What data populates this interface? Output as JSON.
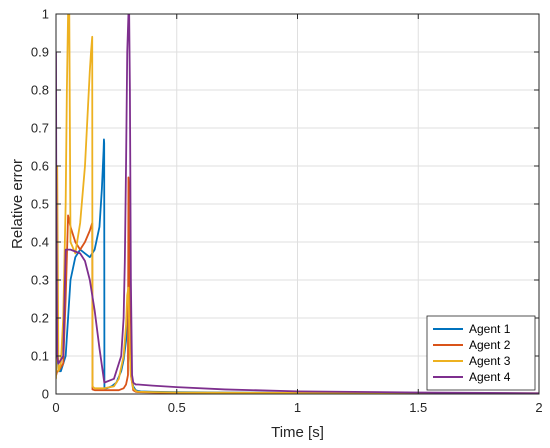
{
  "chart_data": {
    "type": "line",
    "title": "",
    "xlabel": "Time [s]",
    "ylabel": "Relative error",
    "xlim": [
      0,
      2
    ],
    "ylim": [
      0,
      1
    ],
    "xticks": [
      0,
      0.5,
      1,
      1.5,
      2
    ],
    "xtick_labels": [
      "0",
      "0.5",
      "1",
      "1.5",
      "2"
    ],
    "yticks": [
      0,
      0.1,
      0.2,
      0.3,
      0.4,
      0.5,
      0.6,
      0.7,
      0.8,
      0.9,
      1
    ],
    "ytick_labels": [
      "0",
      "0.1",
      "0.2",
      "0.3",
      "0.4",
      "0.5",
      "0.6",
      "0.7",
      "0.8",
      "0.9",
      "1"
    ],
    "grid": true,
    "legend_position": "bottom-right",
    "series": [
      {
        "name": "Agent 1",
        "color": "#0072BD",
        "x": [
          0,
          0.001,
          0.005,
          0.01,
          0.02,
          0.04,
          0.05,
          0.06,
          0.08,
          0.1,
          0.12,
          0.14,
          0.16,
          0.18,
          0.19,
          0.197,
          0.1985,
          0.1995,
          0.2005,
          0.21,
          0.23,
          0.25,
          0.27,
          0.28,
          0.29,
          0.295,
          0.3,
          0.302,
          0.305,
          0.31,
          0.32,
          0.33,
          0.34,
          0.35,
          0.4,
          0.5,
          0.7,
          1,
          1.5,
          2
        ],
        "y": [
          0.05,
          0.55,
          0.12,
          0.06,
          0.06,
          0.1,
          0.2,
          0.3,
          0.36,
          0.38,
          0.37,
          0.36,
          0.38,
          0.44,
          0.54,
          0.64,
          0.67,
          0.66,
          0.015,
          0.015,
          0.02,
          0.03,
          0.06,
          0.09,
          0.14,
          0.2,
          0.25,
          0.2,
          0.12,
          0.06,
          0.02,
          0.01,
          0.008,
          0.007,
          0.006,
          0.005,
          0.004,
          0.003,
          0.002,
          0.001
        ]
      },
      {
        "name": "Agent 2",
        "color": "#D95319",
        "x": [
          0,
          0.001,
          0.005,
          0.01,
          0.02,
          0.03,
          0.04,
          0.05,
          0.06,
          0.08,
          0.1,
          0.12,
          0.14,
          0.15,
          0.151,
          0.16,
          0.2,
          0.24,
          0.26,
          0.28,
          0.29,
          0.295,
          0.298,
          0.3,
          0.301,
          0.305,
          0.31,
          0.32,
          0.33,
          0.34,
          0.4,
          0.5,
          1,
          1.5,
          2
        ],
        "y": [
          0.05,
          0.05,
          0.06,
          0.06,
          0.07,
          0.08,
          0.25,
          0.47,
          0.44,
          0.4,
          0.38,
          0.4,
          0.43,
          0.45,
          0.012,
          0.01,
          0.01,
          0.01,
          0.01,
          0.015,
          0.025,
          0.04,
          0.05,
          0.57,
          0.55,
          0.2,
          0.05,
          0.01,
          0.006,
          0.005,
          0.004,
          0.003,
          0.002,
          0.001,
          0.001
        ]
      },
      {
        "name": "Agent 3",
        "color": "#EDB120",
        "x": [
          0,
          0.005,
          0.01,
          0.02,
          0.03,
          0.04,
          0.045,
          0.05,
          0.055,
          0.06,
          0.08,
          0.1,
          0.12,
          0.14,
          0.145,
          0.15,
          0.151,
          0.16,
          0.2,
          0.24,
          0.26,
          0.28,
          0.29,
          0.295,
          0.3,
          0.305,
          0.31,
          0.32,
          0.33,
          0.34,
          0.4,
          0.5,
          1,
          1.5,
          2
        ],
        "y": [
          0.04,
          0.6,
          0.06,
          0.08,
          0.2,
          0.5,
          0.8,
          1.0,
          1.0,
          0.4,
          0.37,
          0.45,
          0.6,
          0.85,
          0.9,
          0.94,
          0.02,
          0.015,
          0.015,
          0.02,
          0.04,
          0.1,
          0.18,
          0.26,
          0.28,
          0.12,
          0.05,
          0.015,
          0.008,
          0.006,
          0.005,
          0.004,
          0.003,
          0.002,
          0.002
        ]
      },
      {
        "name": "Agent 4",
        "color": "#7E2F8E",
        "x": [
          0,
          0.001,
          0.005,
          0.01,
          0.02,
          0.03,
          0.04,
          0.05,
          0.06,
          0.08,
          0.1,
          0.12,
          0.14,
          0.16,
          0.18,
          0.2,
          0.24,
          0.27,
          0.28,
          0.285,
          0.29,
          0.295,
          0.3,
          0.303,
          0.306,
          0.31,
          0.315,
          0.32,
          0.33,
          0.34,
          0.4,
          0.5,
          0.7,
          1,
          1.5,
          2
        ],
        "y": [
          0.9,
          0.6,
          0.1,
          0.08,
          0.09,
          0.1,
          0.38,
          0.38,
          0.38,
          0.375,
          0.37,
          0.35,
          0.3,
          0.22,
          0.12,
          0.03,
          0.04,
          0.1,
          0.2,
          0.35,
          0.6,
          0.9,
          1.0,
          1.0,
          0.8,
          0.3,
          0.05,
          0.03,
          0.025,
          0.025,
          0.022,
          0.018,
          0.012,
          0.007,
          0.004,
          0.002
        ]
      }
    ]
  }
}
